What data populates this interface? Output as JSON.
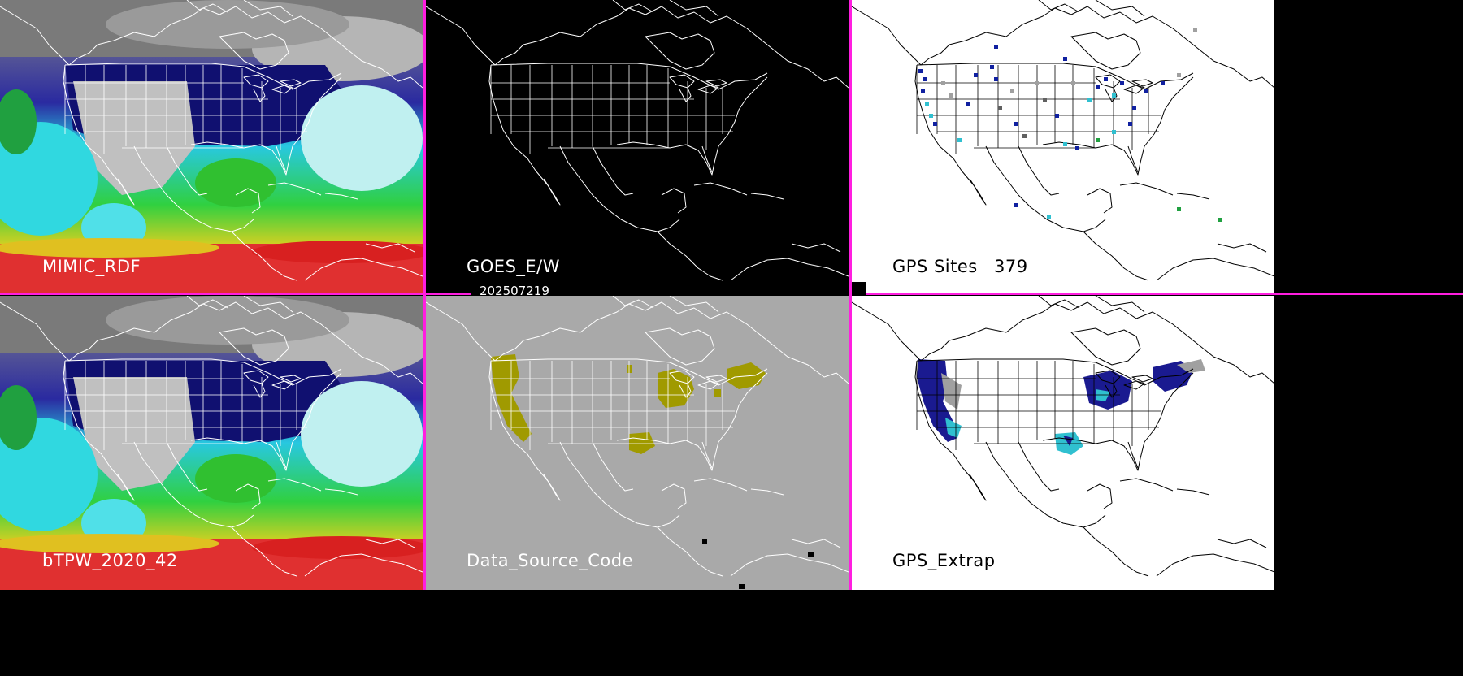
{
  "panels": {
    "mimic": {
      "label": "MIMIC_RDF"
    },
    "goes": {
      "label": "GOES_E/W"
    },
    "gps_sites": {
      "label": "GPS Sites",
      "count": "379"
    },
    "btpw": {
      "label": "bTPW_2020_42"
    },
    "data_source": {
      "label": "Data_Source_Code"
    },
    "gps_extrap": {
      "label": "GPS_Extrap"
    }
  },
  "timestamp": "202507219",
  "colors": {
    "divider": "#ff1ee0",
    "data_source_fill": "#a09a00",
    "data_source_bg": "#a9a9a9"
  }
}
